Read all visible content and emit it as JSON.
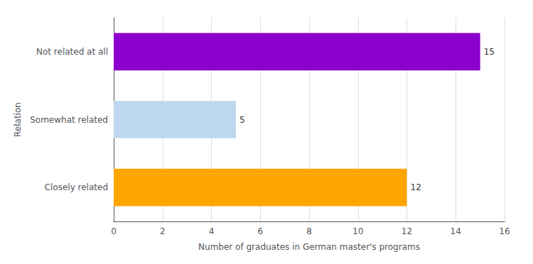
{
  "chart_data": {
    "type": "bar",
    "orientation": "horizontal",
    "categories": [
      "Closely related",
      "Somewhat related",
      "Not related at all"
    ],
    "values": [
      12,
      5,
      15
    ],
    "colors": [
      "#FFA500",
      "#BDD7EE",
      "#8B00CC"
    ],
    "xlabel": "Number of graduates in German master's programs",
    "ylabel": "Relation",
    "xlim": [
      0,
      16
    ],
    "xticks": [
      0,
      2,
      4,
      6,
      8,
      10,
      12,
      14,
      16
    ],
    "grid": true,
    "data_labels": true
  }
}
